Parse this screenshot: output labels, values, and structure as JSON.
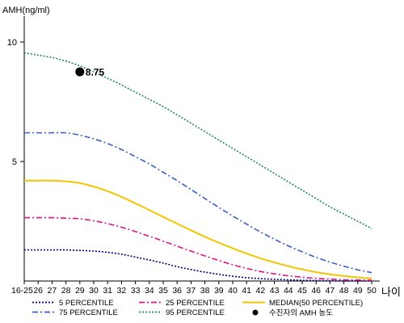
{
  "chart_data": {
    "type": "line",
    "ylabel": "AMH(ng/ml)",
    "xlabel": "나이",
    "categories": [
      "16-25",
      "26",
      "27",
      "28",
      "29",
      "30",
      "31",
      "32",
      "33",
      "34",
      "35",
      "36",
      "37",
      "38",
      "39",
      "40",
      "41",
      "42",
      "43",
      "44",
      "45",
      "46",
      "47",
      "48",
      "49",
      "50"
    ],
    "ylim": [
      0,
      11
    ],
    "yticks": [
      5,
      10
    ],
    "grid": false,
    "legend_position": "bottom",
    "series": [
      {
        "name": "5 PERCENTILE",
        "color": "#000080",
        "dash": "2,2",
        "values": [
          1.3,
          1.3,
          1.3,
          1.3,
          1.28,
          1.25,
          1.2,
          1.12,
          1.0,
          0.88,
          0.75,
          0.6,
          0.48,
          0.37,
          0.28,
          0.2,
          0.14,
          0.1,
          0.07,
          0.05,
          0.03,
          0.02,
          0.01,
          0.0,
          0.0,
          0.0
        ]
      },
      {
        "name": "25 PERCENTILE",
        "color": "#e0118a",
        "dash": "7,3,2,3",
        "values": [
          2.65,
          2.65,
          2.65,
          2.63,
          2.6,
          2.52,
          2.4,
          2.25,
          2.07,
          1.87,
          1.67,
          1.46,
          1.25,
          1.05,
          0.86,
          0.68,
          0.53,
          0.4,
          0.3,
          0.22,
          0.16,
          0.11,
          0.08,
          0.05,
          0.04,
          0.03
        ]
      },
      {
        "name": "MEDIAN(50 PERCENTILE)",
        "color": "#f4c400",
        "dash": "",
        "values": [
          4.2,
          4.2,
          4.2,
          4.17,
          4.1,
          3.95,
          3.76,
          3.52,
          3.25,
          2.97,
          2.68,
          2.4,
          2.12,
          1.85,
          1.6,
          1.37,
          1.15,
          0.95,
          0.78,
          0.62,
          0.49,
          0.37,
          0.28,
          0.21,
          0.15,
          0.11
        ]
      },
      {
        "name": "75 PERCENTILE",
        "color": "#3a5fc8",
        "dash": "7,3,2,3",
        "values": [
          6.2,
          6.2,
          6.2,
          6.2,
          6.1,
          5.95,
          5.75,
          5.5,
          5.2,
          4.9,
          4.55,
          4.2,
          3.83,
          3.45,
          3.08,
          2.72,
          2.38,
          2.05,
          1.75,
          1.47,
          1.22,
          0.99,
          0.79,
          0.62,
          0.47,
          0.35
        ]
      },
      {
        "name": "95 PERCENTILE",
        "color": "#1a8a5a",
        "dash": "2,2",
        "values": [
          9.55,
          9.45,
          9.35,
          9.2,
          9.0,
          8.75,
          8.48,
          8.2,
          7.9,
          7.6,
          7.3,
          6.95,
          6.6,
          6.25,
          5.9,
          5.55,
          5.2,
          4.85,
          4.5,
          4.15,
          3.8,
          3.45,
          3.1,
          2.8,
          2.5,
          2.2
        ]
      }
    ],
    "marker": {
      "name": "수진자의 AMH 농도",
      "x": "29",
      "y": 8.75,
      "label": "8.75",
      "color": "#000000"
    }
  }
}
